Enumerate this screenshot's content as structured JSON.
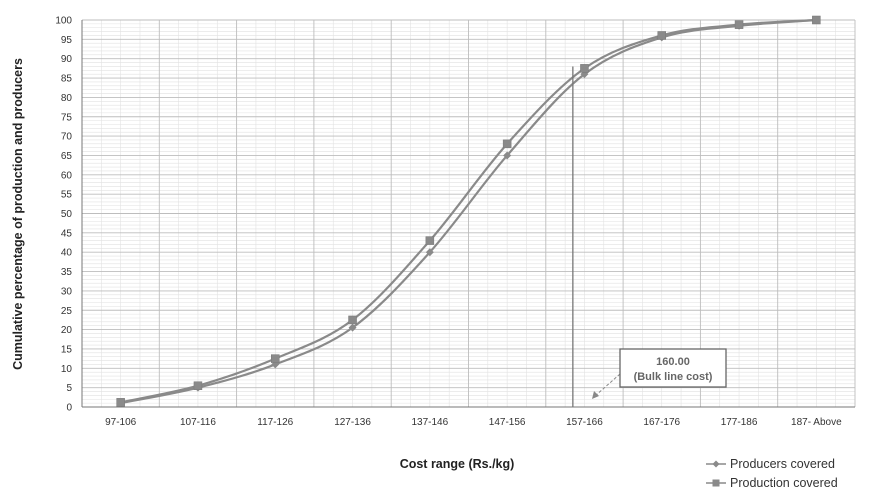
{
  "chart_data": {
    "type": "line",
    "xlabel": "Cost range (Rs./kg)",
    "ylabel": "Cumulative percentage of production and producers",
    "categories": [
      "97-106",
      "107-116",
      "117-126",
      "127-136",
      "137-146",
      "147-156",
      "157-166",
      "167-176",
      "177-186",
      "187- Above"
    ],
    "ylim": [
      0,
      100
    ],
    "ytick_step": 5,
    "grid": true,
    "legend_position": "bottom-right",
    "series": [
      {
        "name": "Producers covered",
        "marker": "diamond",
        "color": "#8a8a8a",
        "values": [
          1,
          5,
          11,
          20.5,
          40,
          65,
          86,
          95.5,
          98.5,
          100
        ]
      },
      {
        "name": "Production covered",
        "marker": "square",
        "color": "#8a8a8a",
        "values": [
          1.2,
          5.5,
          12.5,
          22.5,
          43,
          68,
          87.5,
          96,
          98.8,
          100
        ]
      }
    ],
    "annotations": [
      {
        "value": "160.00",
        "text": "(Bulk line cost)",
        "x_value": 160
      }
    ]
  }
}
